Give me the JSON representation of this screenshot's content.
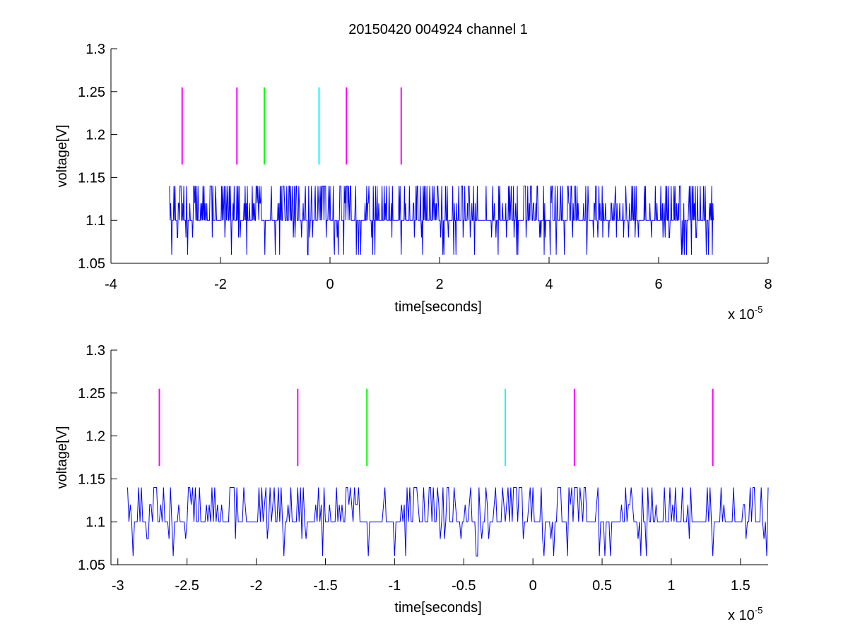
{
  "chart_data": [
    {
      "type": "line",
      "title": "20150420 004924 channel 1",
      "xlabel": "time[seconds]",
      "ylabel": "voltage[V]",
      "xlim": [
        -4e-05,
        8e-05
      ],
      "ylim": [
        1.05,
        1.3
      ],
      "xticks": [
        -4e-05,
        -2e-05,
        0,
        2e-05,
        4e-05,
        6e-05,
        8e-05
      ],
      "xtick_labels": [
        "-4",
        "-2",
        "0",
        "2",
        "4",
        "6",
        "8"
      ],
      "yticks": [
        1.05,
        1.1,
        1.15,
        1.2,
        1.25,
        1.3
      ],
      "ytick_labels": [
        "1.05",
        "1.1",
        "1.15",
        "1.2",
        "1.25",
        "1.3"
      ],
      "x_multiplier": "x 10",
      "x_multiplier_exp": "-5",
      "grid": false,
      "series": [
        {
          "color": "#0000ff",
          "x_range": [
            -2.93e-05,
            7e-05
          ],
          "levels": [
            1.06,
            1.08,
            1.1,
            1.12,
            1.14
          ],
          "baseline": 1.1,
          "x_step": 1e-07
        }
      ],
      "markers": [
        {
          "x": -2.7e-05,
          "y": [
            1.165,
            1.255
          ],
          "color": "#ff00ff"
        },
        {
          "x": -1.7e-05,
          "y": [
            1.165,
            1.255
          ],
          "color": "#ff00ff"
        },
        {
          "x": -1.2e-05,
          "y": [
            1.165,
            1.255
          ],
          "color": "#00ff00"
        },
        {
          "x": -2e-06,
          "y": [
            1.165,
            1.255
          ],
          "color": "#00ffff"
        },
        {
          "x": 3e-06,
          "y": [
            1.165,
            1.255
          ],
          "color": "#ff00ff"
        },
        {
          "x": 1.3e-05,
          "y": [
            1.165,
            1.255
          ],
          "color": "#ff00ff"
        }
      ]
    },
    {
      "type": "line",
      "title": "",
      "xlabel": "time[seconds]",
      "ylabel": "voltage[V]",
      "xlim": [
        -3.05e-05,
        1.7e-05
      ],
      "ylim": [
        1.05,
        1.3
      ],
      "xticks": [
        -3e-05,
        -2.5e-05,
        -2e-05,
        -1.5e-05,
        -1e-05,
        -5e-06,
        0,
        5e-06,
        1e-05,
        1.5e-05
      ],
      "xtick_labels": [
        "-3",
        "-2.5",
        "-2",
        "-1.5",
        "-1",
        "-0.5",
        "0",
        "0.5",
        "1",
        "1.5"
      ],
      "yticks": [
        1.05,
        1.1,
        1.15,
        1.2,
        1.25,
        1.3
      ],
      "ytick_labels": [
        "1.05",
        "1.1",
        "1.15",
        "1.2",
        "1.25",
        "1.3"
      ],
      "x_multiplier": "x 10",
      "x_multiplier_exp": "-5",
      "grid": false,
      "series": [
        {
          "color": "#0000ff",
          "x_range": [
            -2.93e-05,
            1.7e-05
          ],
          "levels": [
            1.06,
            1.08,
            1.1,
            1.12,
            1.14
          ],
          "baseline": 1.1,
          "x_step": 1e-07
        }
      ],
      "markers": [
        {
          "x": -2.7e-05,
          "y": [
            1.165,
            1.255
          ],
          "color": "#ff00ff"
        },
        {
          "x": -1.7e-05,
          "y": [
            1.165,
            1.255
          ],
          "color": "#ff00ff"
        },
        {
          "x": -1.2e-05,
          "y": [
            1.165,
            1.255
          ],
          "color": "#00ff00"
        },
        {
          "x": -2e-06,
          "y": [
            1.165,
            1.255
          ],
          "color": "#00ffff"
        },
        {
          "x": 3e-06,
          "y": [
            1.165,
            1.255
          ],
          "color": "#ff00ff"
        },
        {
          "x": 1.3e-05,
          "y": [
            1.165,
            1.255
          ],
          "color": "#ff00ff"
        }
      ]
    }
  ]
}
